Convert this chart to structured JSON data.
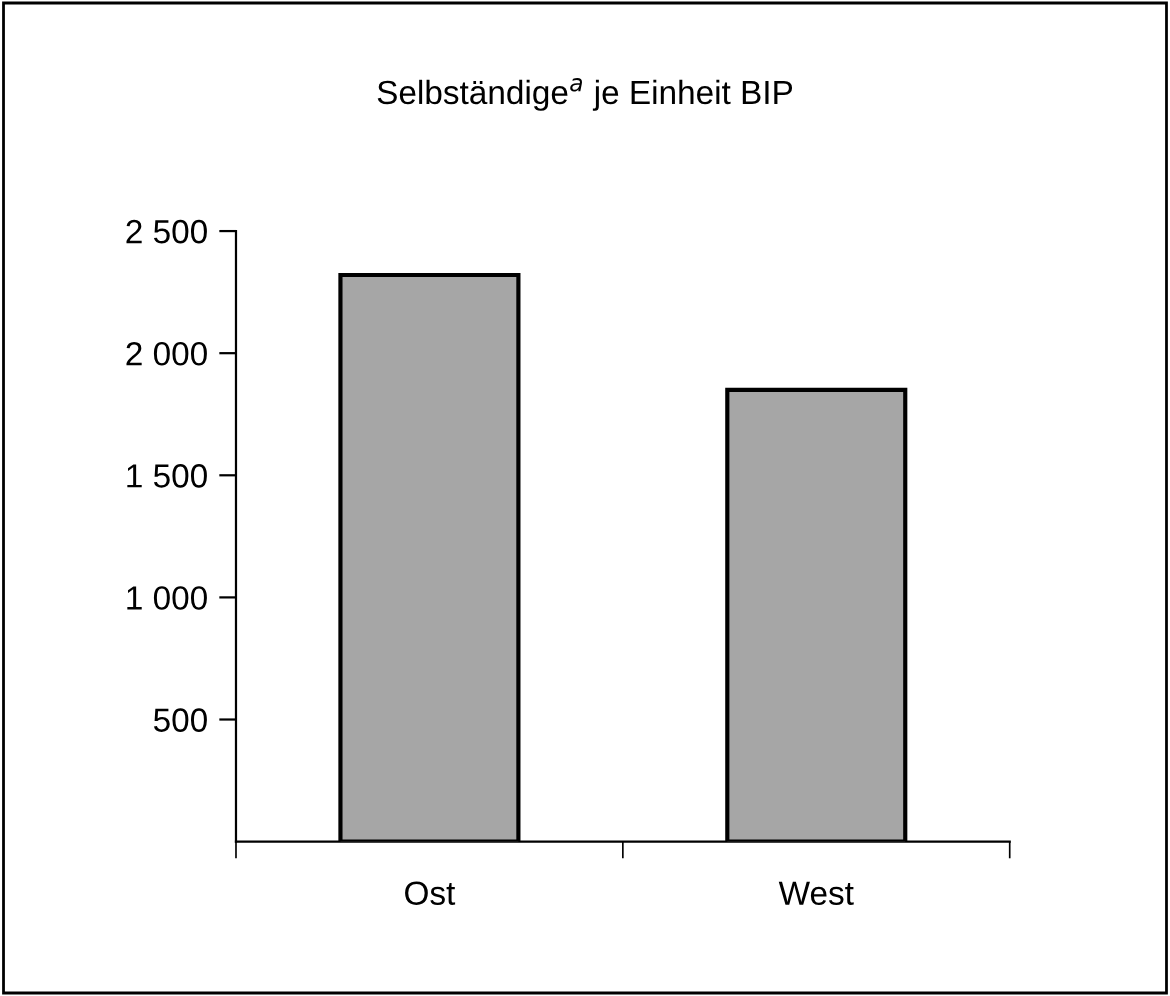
{
  "chart_data": {
    "type": "bar",
    "title": "Selbständige$^{a}$ je Einheit BIP",
    "categories": [
      "Ost",
      "West"
    ],
    "values": [
      2320,
      1850
    ],
    "color": "#a6a6a6",
    "ylim": [
      0,
      2500
    ],
    "yticks": [
      {
        "value": 500,
        "label": "500"
      },
      {
        "value": 1000,
        "label": "1 000"
      },
      {
        "value": 1500,
        "label": "1 500"
      },
      {
        "value": 2000,
        "label": "2 000"
      },
      {
        "value": 2500,
        "label": "2 500"
      }
    ],
    "grid": false,
    "legend": false
  }
}
